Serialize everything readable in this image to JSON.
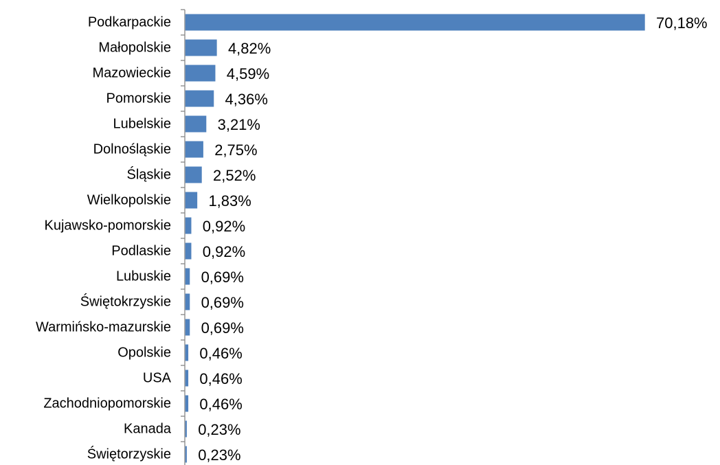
{
  "chart_data": {
    "type": "bar",
    "orientation": "horizontal",
    "categories": [
      "Podkarpackie",
      "Małopolskie",
      "Mazowieckie",
      "Pomorskie",
      "Lubelskie",
      "Dolnośląskie",
      "Śląskie",
      "Wielkopolskie",
      "Kujawsko-pomorskie",
      "Podlaskie",
      "Lubuskie",
      "Świętokrzyskie",
      "Warmińsko-mazurskie",
      "Opolskie",
      "USA",
      "Zachodniopomorskie",
      "Kanada",
      "Świętorzyskie"
    ],
    "values": [
      70.18,
      4.82,
      4.59,
      4.36,
      3.21,
      2.75,
      2.52,
      1.83,
      0.92,
      0.92,
      0.69,
      0.69,
      0.69,
      0.46,
      0.46,
      0.46,
      0.23,
      0.23
    ],
    "value_labels": [
      "70,18%",
      "4,82%",
      "4,59%",
      "4,36%",
      "3,21%",
      "2,75%",
      "2,52%",
      "1,83%",
      "0,92%",
      "0,92%",
      "0,69%",
      "0,69%",
      "0,69%",
      "0,46%",
      "0,46%",
      "0,46%",
      "0,23%",
      "0,23%"
    ],
    "xlim": [
      0,
      70.18
    ],
    "grid": false,
    "legend": "none",
    "bar_color": "#4F81BD",
    "axis_color": "#868686"
  }
}
